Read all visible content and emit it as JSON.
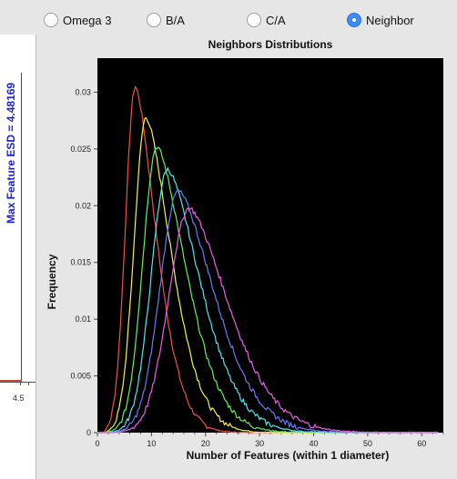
{
  "radio_options": [
    {
      "label": "Omega 3",
      "selected": false
    },
    {
      "label": "B/A",
      "selected": false
    },
    {
      "label": "C/A",
      "selected": false
    },
    {
      "label": "Neighbor",
      "selected": true
    }
  ],
  "left_panel": {
    "label": "Max Feature ESD = 4.48169",
    "tick_label": "4.5"
  },
  "chart_data": {
    "type": "line",
    "title": "Neighbors Distributions",
    "xlabel": "Number of Features (within 1 diameter)",
    "ylabel": "Frequency",
    "xlim": [
      0,
      64
    ],
    "ylim": [
      0,
      0.033
    ],
    "x_ticks": [
      0,
      10,
      20,
      30,
      40,
      50,
      60
    ],
    "y_ticks": [
      0,
      0.005,
      0.01,
      0.015,
      0.02,
      0.025,
      0.03
    ],
    "y_tick_labels": [
      "0",
      "0.005",
      "0.01",
      "0.015",
      "0.02",
      "0.025",
      "0.03"
    ],
    "background": "#000000",
    "legend": "none",
    "series": [
      {
        "color": "#f0504a",
        "peak_x": 7,
        "peak_y": 0.0305,
        "width_left": 1.8,
        "width_right": 4.2
      },
      {
        "color": "#f5f24a",
        "peak_x": 9,
        "peak_y": 0.0278,
        "width_left": 2.2,
        "width_right": 5.0
      },
      {
        "color": "#66f060",
        "peak_x": 11,
        "peak_y": 0.0252,
        "width_left": 2.6,
        "width_right": 5.8
      },
      {
        "color": "#4ee8f0",
        "peak_x": 13,
        "peak_y": 0.0232,
        "width_left": 3.0,
        "width_right": 6.5
      },
      {
        "color": "#6a7cf5",
        "peak_x": 15,
        "peak_y": 0.0213,
        "width_left": 3.4,
        "width_right": 7.2
      },
      {
        "color": "#e860e6",
        "peak_x": 17,
        "peak_y": 0.0198,
        "width_left": 3.8,
        "width_right": 7.8
      }
    ]
  }
}
